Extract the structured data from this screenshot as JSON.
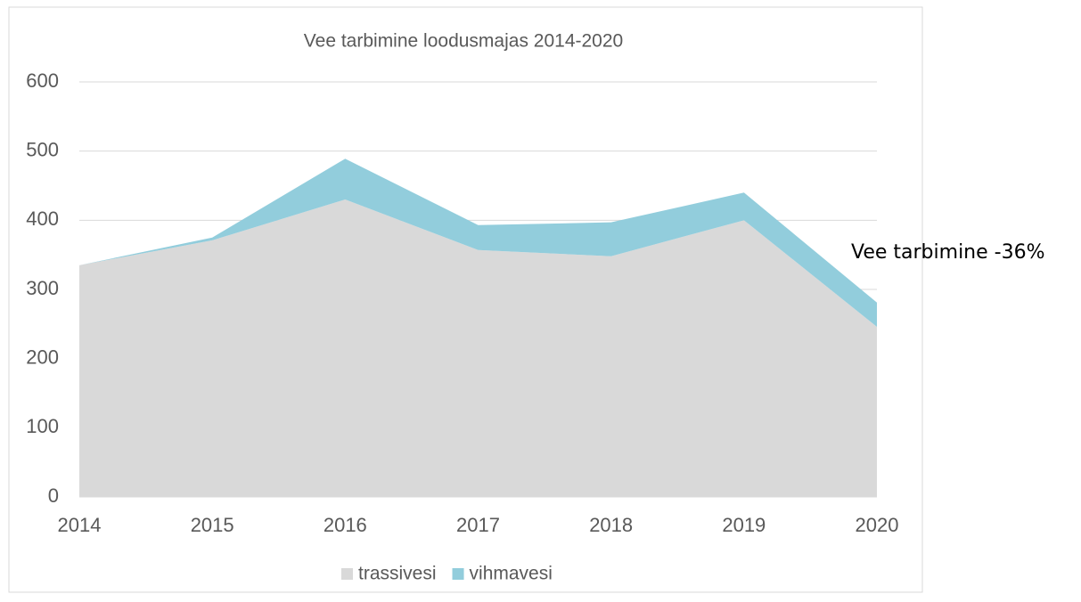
{
  "chart_data": {
    "type": "area",
    "stacked": true,
    "title": "Vee tarbimine loodusmajas 2014-2020",
    "annotation": "Vee tarbimine -36%",
    "categories": [
      "2014",
      "2015",
      "2016",
      "2017",
      "2018",
      "2019",
      "2020"
    ],
    "series": [
      {
        "name": "trassivesi",
        "color": "#d9d9d9",
        "values": [
          335,
          371,
          430,
          357,
          348,
          400,
          246
        ]
      },
      {
        "name": "vihmavesi",
        "color": "#92cddc",
        "values": [
          0,
          4,
          59,
          36,
          49,
          40,
          35
        ]
      }
    ],
    "ylim": [
      0,
      600
    ],
    "yticks": [
      0,
      100,
      200,
      300,
      400,
      500,
      600
    ],
    "grid": true,
    "legend": "bottom"
  }
}
